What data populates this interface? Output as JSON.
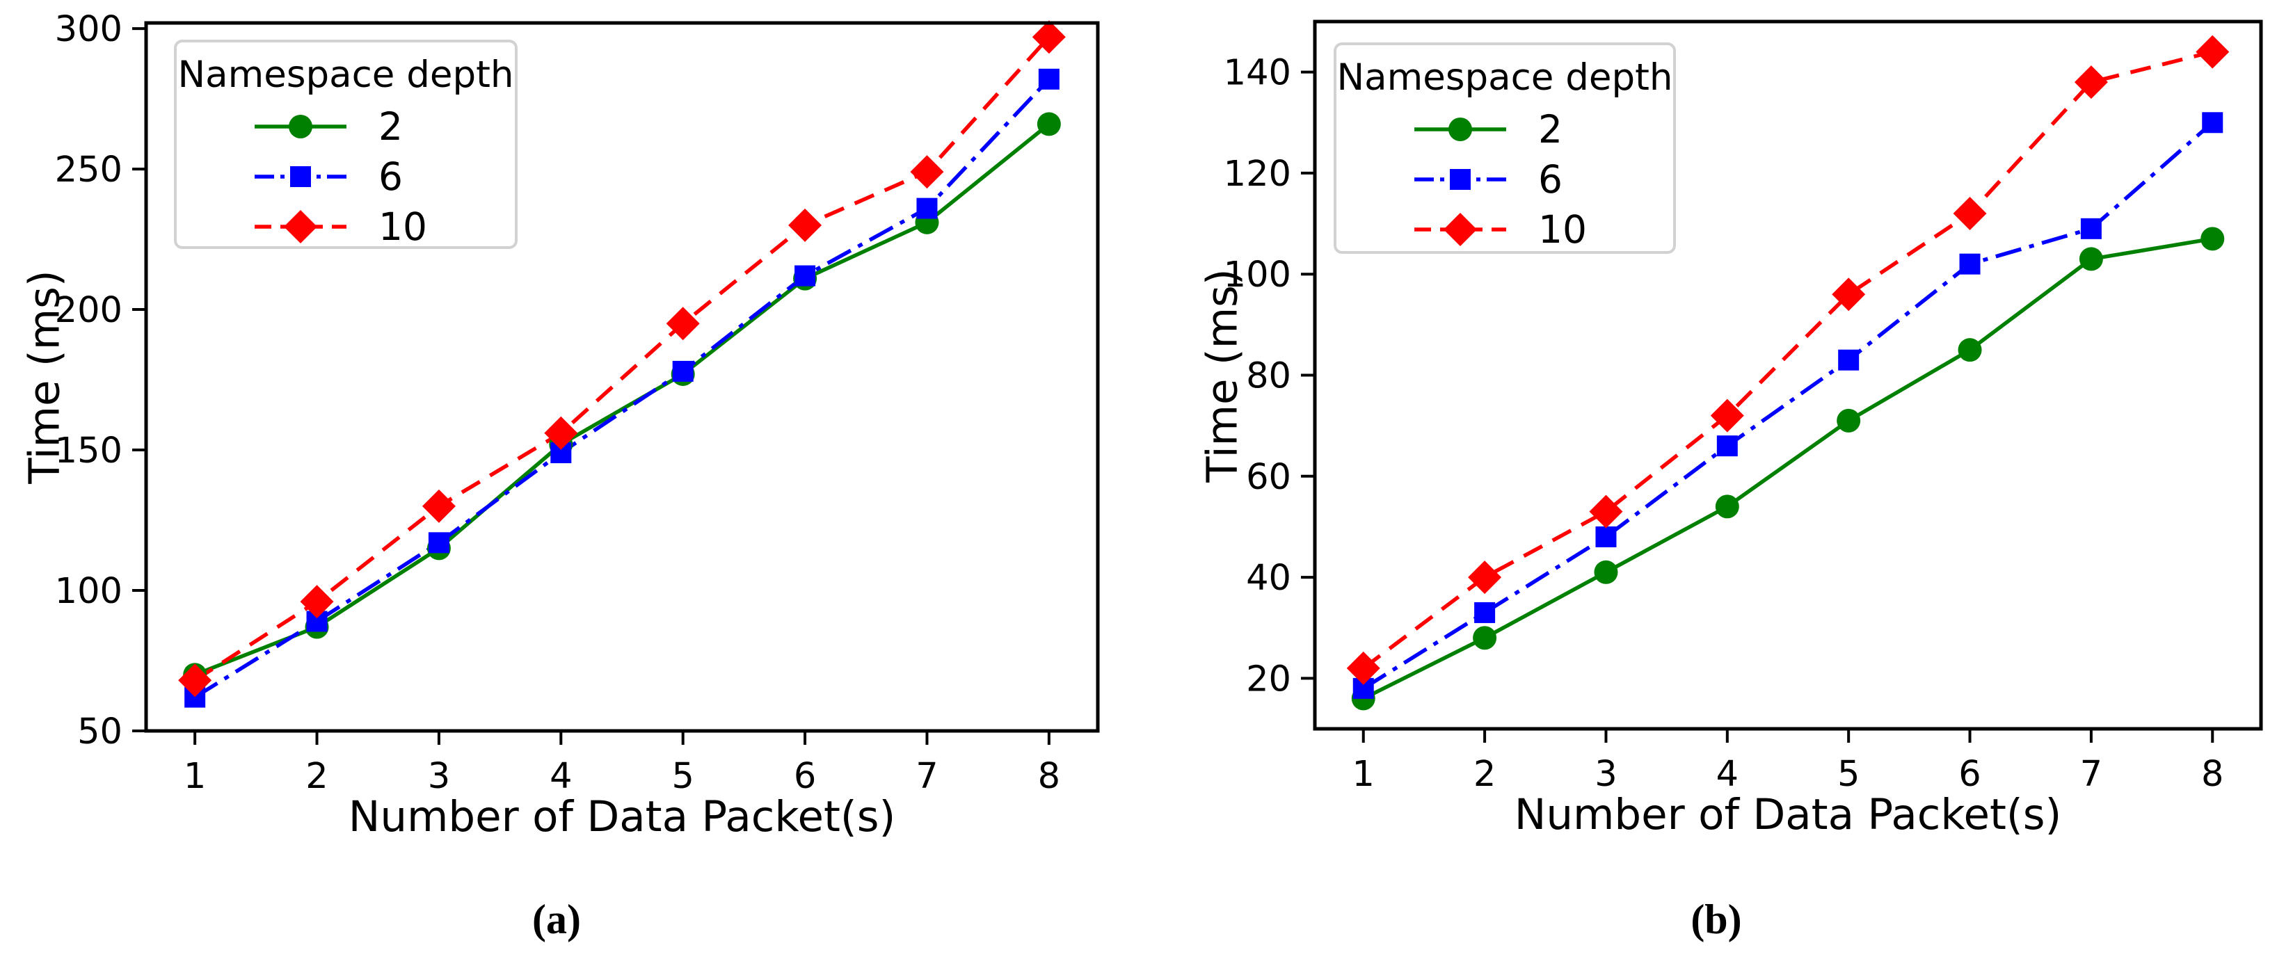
{
  "figure": {
    "background": "#ffffff",
    "text_color": "#000000",
    "frame_color": "#000000",
    "legend_border_color": "#d2d2d2"
  },
  "chart_data": [
    {
      "id": "a",
      "type": "line",
      "caption": "(a)",
      "xlabel": "Number of Data Packet(s)",
      "ylabel": "Time (ms)",
      "x": [
        1,
        2,
        3,
        4,
        5,
        6,
        7,
        8
      ],
      "xticks": [
        1,
        2,
        3,
        4,
        5,
        6,
        7,
        8
      ],
      "yticks": [
        50,
        100,
        150,
        200,
        250,
        300
      ],
      "xlim": [
        0.6,
        8.4
      ],
      "ylim": [
        50,
        302
      ],
      "grid": false,
      "legend": {
        "title": "Namespace depth",
        "position": "upper-left"
      },
      "series": [
        {
          "name": "2",
          "color": "#008000",
          "linestyle": "solid",
          "marker": "circle",
          "values": [
            70,
            87,
            115,
            152,
            177,
            211,
            231,
            266
          ]
        },
        {
          "name": "6",
          "color": "#0000ff",
          "linestyle": "dashdot",
          "marker": "square",
          "values": [
            62,
            89,
            117,
            149,
            178,
            212,
            236,
            282
          ]
        },
        {
          "name": "10",
          "color": "#ff0000",
          "linestyle": "dashed",
          "marker": "diamond",
          "values": [
            68,
            96,
            130,
            156,
            195,
            230,
            249,
            297
          ]
        }
      ]
    },
    {
      "id": "b",
      "type": "line",
      "caption": "(b)",
      "xlabel": "Number of Data Packet(s)",
      "ylabel": "Time (ms)",
      "x": [
        1,
        2,
        3,
        4,
        5,
        6,
        7,
        8
      ],
      "xticks": [
        1,
        2,
        3,
        4,
        5,
        6,
        7,
        8
      ],
      "yticks": [
        20,
        40,
        60,
        80,
        100,
        120,
        140
      ],
      "xlim": [
        0.6,
        8.4
      ],
      "ylim": [
        10,
        150
      ],
      "grid": false,
      "legend": {
        "title": "Namespace depth",
        "position": "upper-left"
      },
      "series": [
        {
          "name": "2",
          "color": "#008000",
          "linestyle": "solid",
          "marker": "circle",
          "values": [
            16,
            28,
            41,
            54,
            71,
            85,
            103,
            107
          ]
        },
        {
          "name": "6",
          "color": "#0000ff",
          "linestyle": "dashdot",
          "marker": "square",
          "values": [
            18,
            33,
            48,
            66,
            83,
            102,
            109,
            130
          ]
        },
        {
          "name": "10",
          "color": "#ff0000",
          "linestyle": "dashed",
          "marker": "diamond",
          "values": [
            22,
            40,
            53,
            72,
            96,
            112,
            138,
            144
          ]
        }
      ]
    }
  ]
}
